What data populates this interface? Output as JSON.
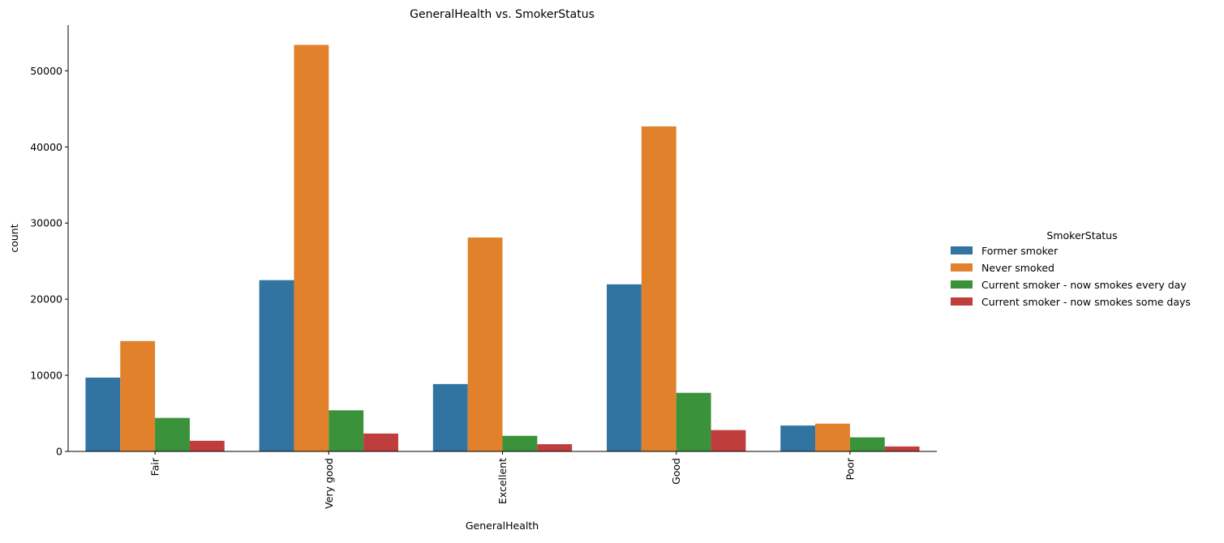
{
  "chart_data": {
    "type": "bar",
    "title": "GeneralHealth vs. SmokerStatus",
    "xlabel": "GeneralHealth",
    "ylabel": "count",
    "categories": [
      "Fair",
      "Very good",
      "Excellent",
      "Good",
      "Poor"
    ],
    "series": [
      {
        "name": "Former smoker",
        "color": "#3274a1",
        "values": [
          9700,
          22500,
          8850,
          21950,
          3400
        ]
      },
      {
        "name": "Never smoked",
        "color": "#e1812c",
        "values": [
          14500,
          53400,
          28100,
          42700,
          3650
        ]
      },
      {
        "name": "Current smoker - now smokes every day",
        "color": "#3a923a",
        "values": [
          4400,
          5400,
          2050,
          7700,
          1850
        ]
      },
      {
        "name": "Current smoker - now smokes some days",
        "color": "#c03d3e",
        "values": [
          1400,
          2350,
          950,
          2800,
          650
        ]
      }
    ],
    "yticks": [
      "0",
      "10000",
      "20000",
      "30000",
      "40000",
      "50000"
    ],
    "ylim": [
      0,
      56000
    ],
    "legend": {
      "title": "SmokerStatus",
      "placement": "right"
    },
    "grid": false
  }
}
